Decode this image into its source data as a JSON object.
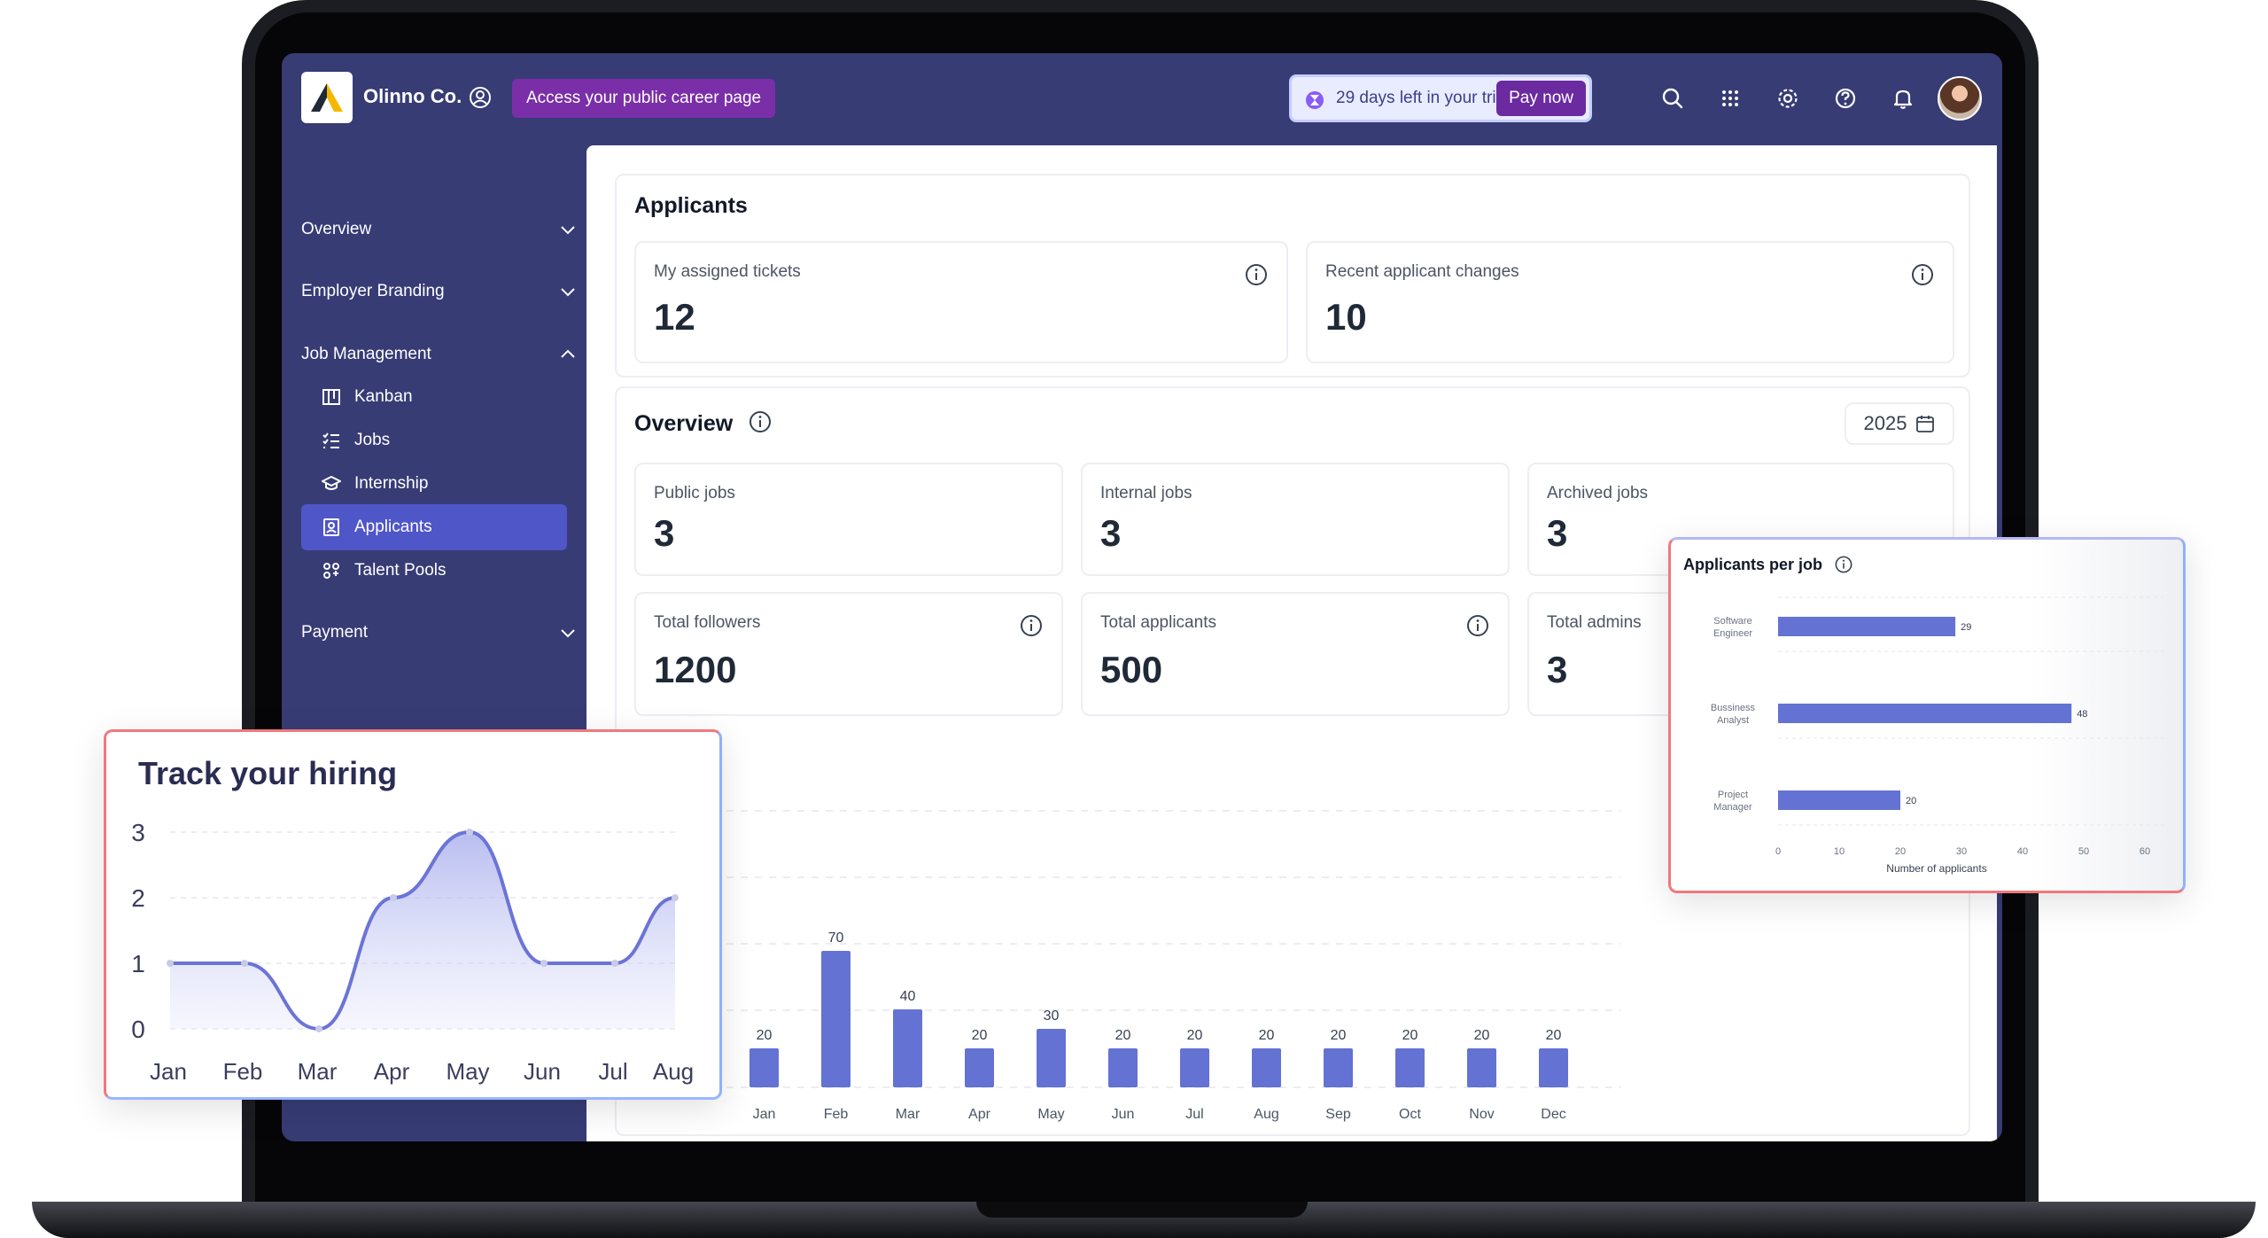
{
  "topbar": {
    "company_name": "Olinno Co.",
    "career_button": "Access your public career page",
    "trial_text": "29 days left in your trial",
    "pay_button": "Pay now",
    "icons": [
      "search-icon",
      "apps-grid-icon",
      "gear-icon",
      "help-icon",
      "bell-icon"
    ]
  },
  "sidebar": {
    "overview": "Overview",
    "employer_branding": "Employer Branding",
    "job_management": "Job Management",
    "items": [
      {
        "label": "Kanban",
        "icon": "kanban-icon"
      },
      {
        "label": "Jobs",
        "icon": "list-check-icon"
      },
      {
        "label": "Internship",
        "icon": "graduation-cap-icon"
      },
      {
        "label": "Applicants",
        "icon": "badge-user-icon",
        "active": true
      },
      {
        "label": "Talent Pools",
        "icon": "people-grid-icon"
      }
    ],
    "payment": "Payment",
    "accent": "#4f56c8"
  },
  "applicants": {
    "title": "Applicants",
    "assigned_label": "My assigned tickets",
    "assigned_value": "12",
    "changes_label": "Recent applicant changes",
    "changes_value": "10"
  },
  "overview": {
    "title": "Overview",
    "year": "2025",
    "public_jobs_label": "Public jobs",
    "public_jobs_value": "3",
    "internal_jobs_label": "Internal jobs",
    "internal_jobs_value": "3",
    "archived_jobs_label": "Archived jobs",
    "archived_jobs_value": "3",
    "followers_label": "Total followers",
    "followers_value": "1200",
    "applicants_label": "Total applicants",
    "applicants_value": "500",
    "admins_label": "Total admins",
    "admins_value": "3"
  },
  "chart_data": [
    {
      "type": "bar",
      "categories": [
        "Jan",
        "Feb",
        "Mar",
        "Apr",
        "May",
        "Jun",
        "Jul",
        "Aug",
        "Sep",
        "Oct",
        "Nov",
        "Dec"
      ],
      "values": [
        20,
        70,
        40,
        20,
        30,
        20,
        20,
        20,
        20,
        20,
        20,
        20
      ],
      "ylim": [
        0,
        100
      ],
      "color": "#6472d4"
    },
    {
      "type": "area",
      "title": "Track your hiring",
      "categories": [
        "Jan",
        "Feb",
        "Mar",
        "Apr",
        "May",
        "Jun",
        "Jul",
        "Aug"
      ],
      "values": [
        1,
        1,
        0,
        2,
        3,
        1,
        1,
        2
      ],
      "yticks": [
        "0",
        "1",
        "2",
        "3"
      ],
      "ylim": [
        0,
        3
      ],
      "color": "#6b74d6"
    },
    {
      "type": "bar",
      "orientation": "horizontal",
      "title": "Applicants per job",
      "categories": [
        "Software Engineer",
        "Bussiness Analyst",
        "Project Manager"
      ],
      "values": [
        29,
        48,
        20
      ],
      "xticks": [
        "0",
        "10",
        "20",
        "30",
        "40",
        "50",
        "60"
      ],
      "xlim": [
        0,
        60
      ],
      "xlabel": "Number of applicants",
      "color": "#6472d4"
    }
  ]
}
